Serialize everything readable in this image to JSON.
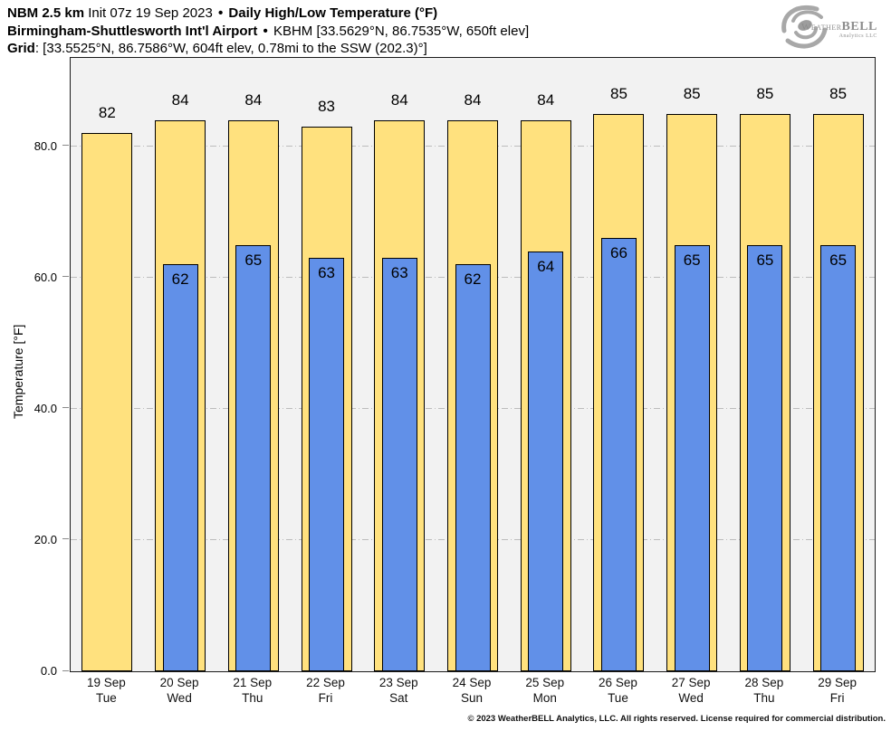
{
  "header": {
    "line1": {
      "model": "NBM 2.5 km",
      "init": "Init 07z 19 Sep 2023",
      "sep": "•",
      "product": "Daily High/Low Temperature (°F)"
    },
    "line2": {
      "station": "Birmingham-Shuttlesworth Int'l Airport",
      "sep": "•",
      "details": "KBHM [33.5629°N, 86.7535°W, 650ft elev]"
    },
    "line3": {
      "label": "Grid",
      "details": ": [33.5525°N, 86.7586°W, 604ft elev, 0.78mi to the SSW (202.3)°]"
    }
  },
  "logo": {
    "weather": "Weather",
    "bell": "BELL",
    "sub": "Analytics LLC"
  },
  "footer": {
    "credit": "© 2023 WeatherBELL Analytics, LLC. All rights reserved. License required for commercial distribution."
  },
  "chart_data": {
    "type": "bar",
    "title": "Daily High/Low Temperature (°F)",
    "ylabel": "Temperature [°F]",
    "ylim": [
      0,
      93.5
    ],
    "yticks": [
      0,
      20,
      40,
      60,
      80
    ],
    "ytick_labels": [
      "0.0",
      "20.0",
      "40.0",
      "60.0",
      "80.0"
    ],
    "grid": {
      "horizontal": true,
      "style": "dash-dot",
      "color": "#bcbcbc"
    },
    "plot_bg": "#f2f2f2",
    "bar_edge": "#000000",
    "categories": [
      "19 Sep",
      "20 Sep",
      "21 Sep",
      "22 Sep",
      "23 Sep",
      "24 Sep",
      "25 Sep",
      "26 Sep",
      "27 Sep",
      "28 Sep",
      "29 Sep"
    ],
    "weekdays": [
      "Tue",
      "Wed",
      "Thu",
      "Fri",
      "Sat",
      "Sun",
      "Mon",
      "Tue",
      "Wed",
      "Thu",
      "Fri"
    ],
    "series": [
      {
        "name": "High",
        "color": "#FFE17E",
        "values": [
          82,
          84,
          84,
          83,
          84,
          84,
          84,
          85,
          85,
          85,
          85
        ]
      },
      {
        "name": "Low",
        "color": "#6190E8",
        "values": [
          null,
          62,
          65,
          63,
          63,
          62,
          64,
          66,
          65,
          65,
          65
        ]
      }
    ]
  }
}
